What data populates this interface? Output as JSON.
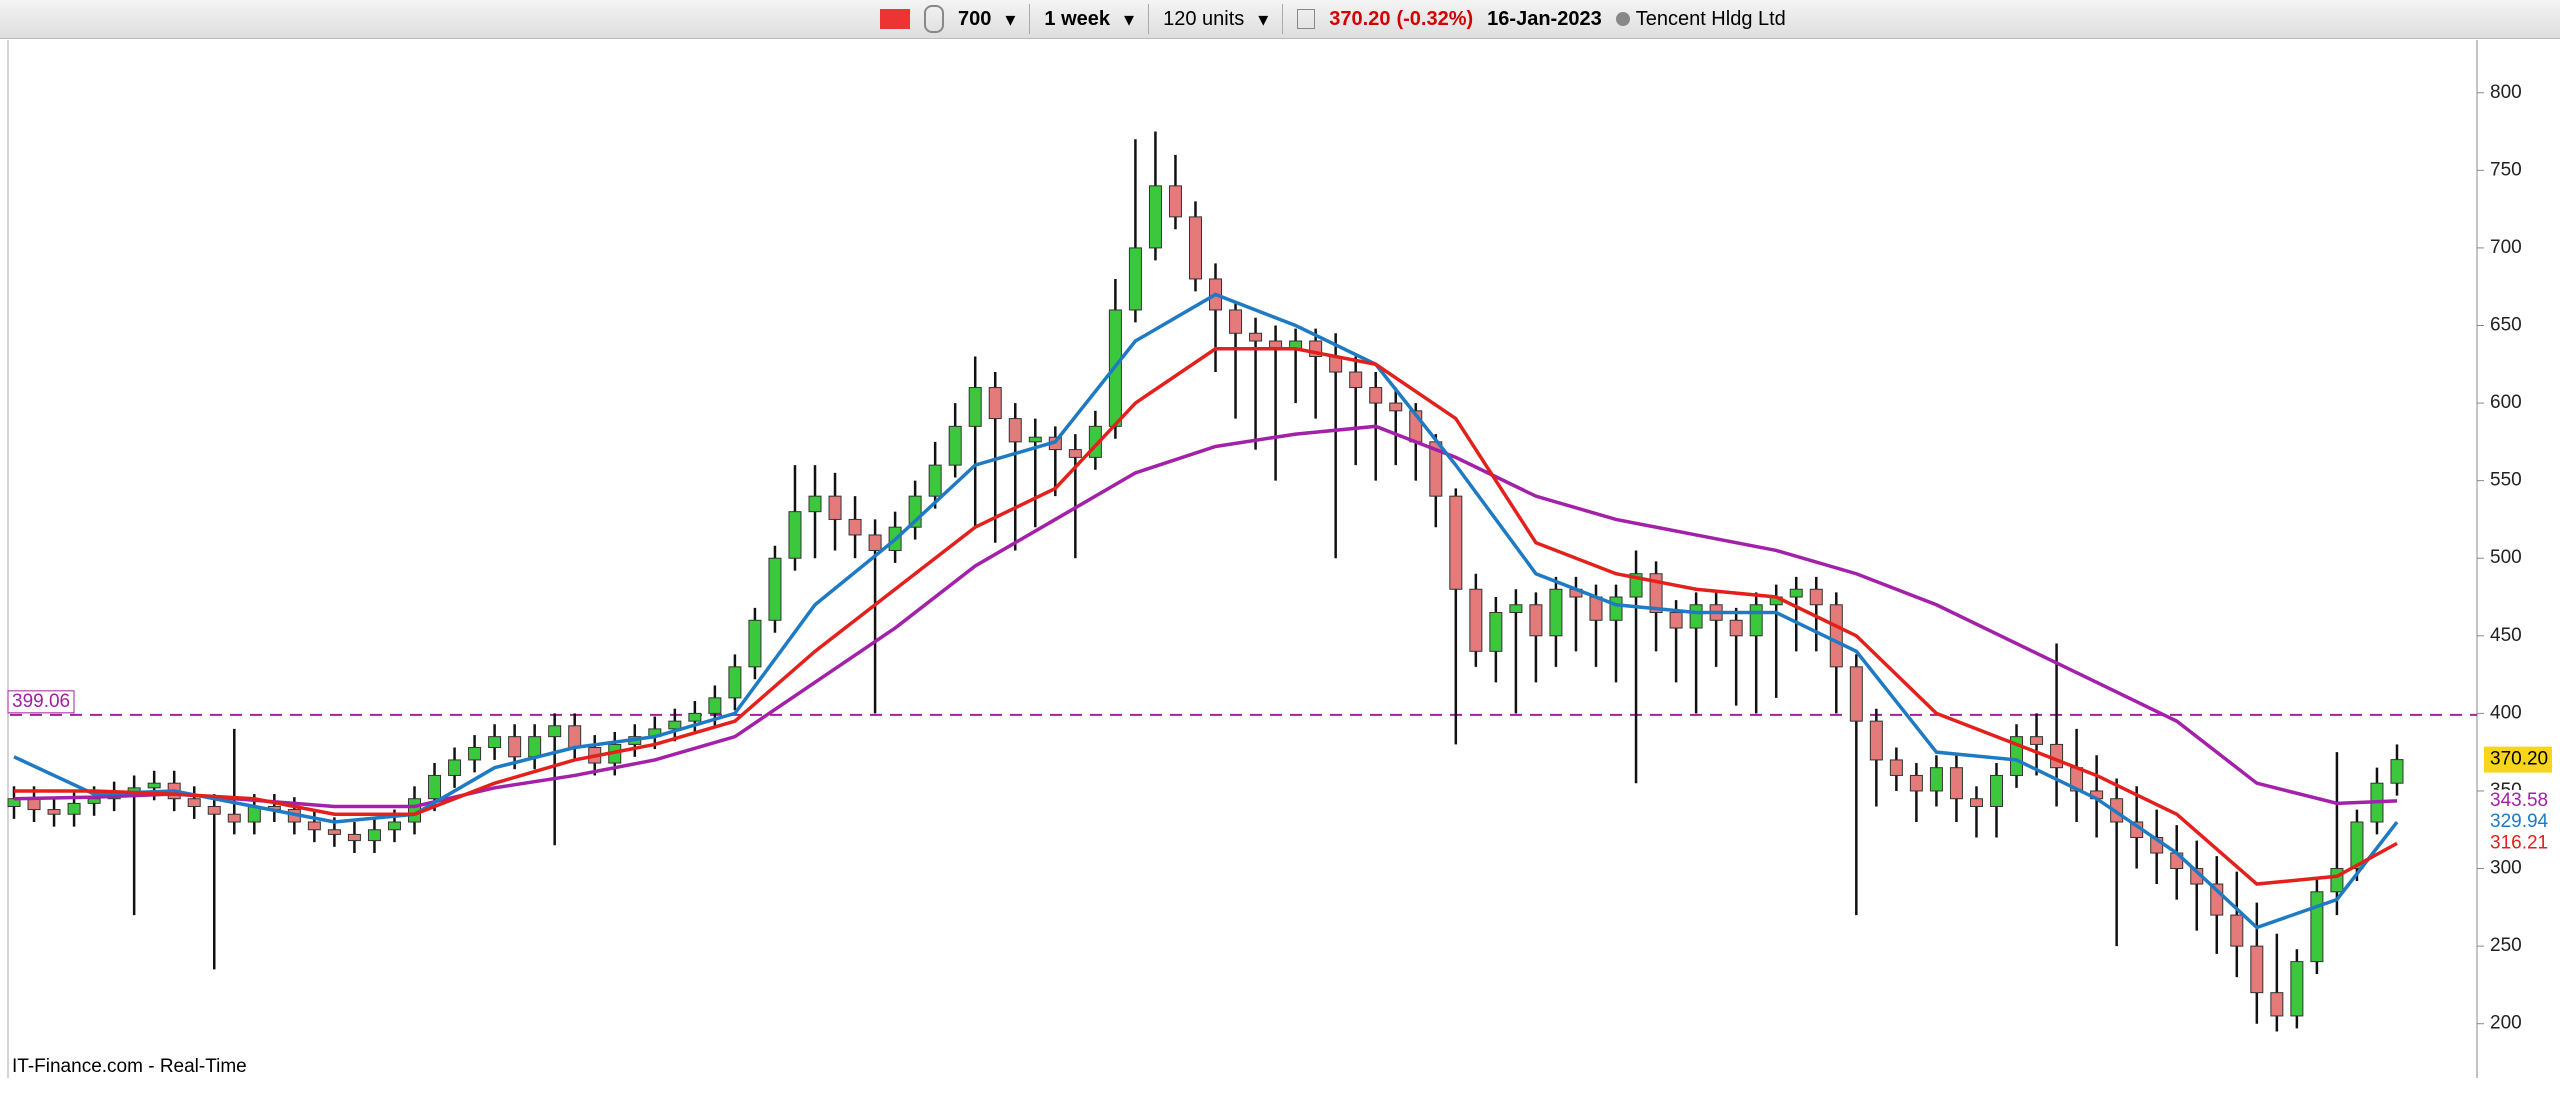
{
  "toolbar": {
    "symbol": "700",
    "period": "1 week",
    "units": "120 units",
    "last_price": "370.20",
    "change": "(-0.32%)",
    "date": "16-Jan-2023",
    "name": "Tencent Hldg Ltd"
  },
  "footer": {
    "source": "IT-Finance.com - Real-Time"
  },
  "chart_data": {
    "type": "candlestick",
    "ylim": [
      165,
      834
    ],
    "yticks": [
      200,
      250,
      300,
      350,
      400,
      450,
      500,
      550,
      600,
      650,
      700,
      750,
      800
    ],
    "up_color": "#3cc83c",
    "down_color": "#e47a7a",
    "hline": {
      "value": 399.06,
      "color": "#a020a0"
    },
    "open": [
      340,
      345,
      338,
      335,
      342,
      345,
      348,
      352,
      355,
      345,
      340,
      335,
      330,
      340,
      338,
      330,
      325,
      322,
      318,
      325,
      330,
      345,
      360,
      370,
      378,
      385,
      372,
      385,
      392,
      378,
      368,
      380,
      385,
      390,
      395,
      400,
      410,
      430,
      460,
      500,
      530,
      540,
      525,
      515,
      505,
      520,
      540,
      560,
      585,
      610,
      590,
      575,
      578,
      570,
      565,
      585,
      660,
      700,
      740,
      720,
      680,
      660,
      645,
      640,
      635,
      640,
      630,
      620,
      610,
      600,
      595,
      575,
      540,
      480,
      440,
      465,
      470,
      450,
      480,
      475,
      460,
      475,
      490,
      465,
      455,
      470,
      460,
      450,
      470,
      475,
      480,
      470,
      430,
      395,
      370,
      360,
      350,
      365,
      345,
      340,
      360,
      385,
      380,
      365,
      350,
      345,
      330,
      320,
      310,
      300,
      290,
      270,
      250,
      220,
      205,
      240,
      285,
      300,
      330,
      355
    ],
    "high": [
      353,
      353,
      346,
      350,
      353,
      356,
      360,
      363,
      363,
      353,
      348,
      390,
      348,
      348,
      346,
      338,
      333,
      330,
      333,
      338,
      353,
      368,
      378,
      386,
      393,
      393,
      393,
      400,
      400,
      386,
      388,
      393,
      398,
      403,
      408,
      418,
      438,
      468,
      508,
      560,
      560,
      555,
      540,
      525,
      530,
      550,
      575,
      600,
      630,
      620,
      600,
      590,
      585,
      580,
      595,
      680,
      770,
      775,
      760,
      730,
      690,
      665,
      655,
      650,
      648,
      648,
      645,
      630,
      620,
      610,
      600,
      580,
      545,
      490,
      475,
      480,
      478,
      488,
      488,
      483,
      483,
      505,
      498,
      473,
      478,
      478,
      468,
      478,
      483,
      488,
      488,
      478,
      438,
      403,
      378,
      368,
      373,
      373,
      353,
      368,
      393,
      400,
      445,
      390,
      373,
      358,
      353,
      338,
      328,
      318,
      308,
      298,
      278,
      258,
      248,
      293,
      375,
      338,
      365,
      380
    ],
    "low": [
      332,
      330,
      327,
      327,
      334,
      337,
      270,
      344,
      337,
      332,
      235,
      322,
      322,
      330,
      322,
      317,
      314,
      310,
      310,
      317,
      322,
      337,
      352,
      362,
      370,
      364,
      364,
      315,
      370,
      360,
      360,
      372,
      377,
      382,
      387,
      392,
      402,
      422,
      452,
      492,
      500,
      505,
      500,
      400,
      497,
      512,
      532,
      552,
      520,
      510,
      505,
      520,
      540,
      500,
      557,
      577,
      652,
      692,
      712,
      672,
      620,
      590,
      570,
      550,
      600,
      590,
      500,
      560,
      550,
      560,
      550,
      520,
      380,
      430,
      420,
      400,
      420,
      430,
      440,
      430,
      420,
      355,
      440,
      420,
      400,
      430,
      405,
      400,
      410,
      440,
      440,
      400,
      270,
      340,
      350,
      330,
      340,
      330,
      320,
      320,
      352,
      360,
      340,
      330,
      320,
      250,
      300,
      290,
      280,
      260,
      245,
      230,
      200,
      195,
      197,
      232,
      270,
      292,
      322,
      347
    ],
    "close": [
      345,
      338,
      335,
      342,
      345,
      348,
      352,
      355,
      345,
      340,
      335,
      330,
      340,
      338,
      330,
      325,
      322,
      318,
      325,
      330,
      345,
      360,
      370,
      378,
      385,
      372,
      385,
      392,
      378,
      368,
      380,
      385,
      390,
      395,
      400,
      410,
      430,
      460,
      500,
      530,
      540,
      525,
      515,
      505,
      520,
      540,
      560,
      585,
      610,
      590,
      575,
      578,
      570,
      565,
      585,
      660,
      700,
      740,
      720,
      680,
      660,
      645,
      640,
      635,
      640,
      630,
      620,
      610,
      600,
      595,
      575,
      540,
      480,
      440,
      465,
      470,
      450,
      480,
      475,
      460,
      475,
      490,
      465,
      455,
      470,
      460,
      450,
      470,
      475,
      480,
      470,
      430,
      395,
      370,
      360,
      350,
      365,
      345,
      340,
      360,
      385,
      380,
      365,
      350,
      345,
      330,
      320,
      310,
      300,
      290,
      270,
      250,
      220,
      205,
      240,
      285,
      300,
      330,
      355,
      370.2
    ],
    "ma_x": [
      0,
      4,
      8,
      12,
      16,
      20,
      24,
      28,
      32,
      36,
      40,
      44,
      48,
      52,
      56,
      60,
      64,
      68,
      72,
      76,
      80,
      84,
      88,
      92,
      96,
      100,
      104,
      108,
      112,
      116,
      119
    ],
    "lines": [
      {
        "color": "#a321a8",
        "values": [
          345,
          346,
          348,
          344,
          340,
          340,
          352,
          360,
          370,
          385,
          420,
          455,
          495,
          525,
          555,
          572,
          580,
          585,
          565,
          540,
          525,
          515,
          505,
          490,
          470,
          445,
          420,
          395,
          355,
          342,
          343.58
        ]
      },
      {
        "color": "#1f7ac4",
        "values": [
          372,
          348,
          350,
          340,
          330,
          335,
          365,
          378,
          385,
          400,
          470,
          512,
          560,
          575,
          640,
          670,
          650,
          625,
          560,
          490,
          470,
          465,
          465,
          440,
          375,
          370,
          345,
          310,
          262,
          280,
          329.94
        ]
      },
      {
        "color": "#e3211c",
        "values": [
          350,
          350,
          348,
          345,
          335,
          335,
          355,
          370,
          380,
          395,
          440,
          480,
          520,
          545,
          600,
          635,
          635,
          625,
          590,
          510,
          490,
          480,
          475,
          450,
          400,
          380,
          360,
          335,
          290,
          295,
          316.21
        ]
      }
    ]
  }
}
